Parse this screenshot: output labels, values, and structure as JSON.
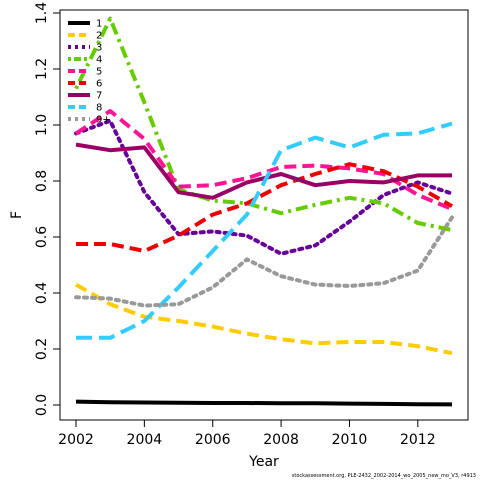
{
  "chart_data": {
    "type": "line",
    "xlabel": "Year",
    "ylabel": "F",
    "xlim": [
      2002,
      2013
    ],
    "ylim": [
      0.0,
      1.4
    ],
    "x": [
      2002,
      2003,
      2004,
      2005,
      2006,
      2007,
      2008,
      2009,
      2010,
      2011,
      2012,
      2013
    ],
    "xticks": [
      2002,
      2004,
      2006,
      2008,
      2010,
      2012
    ],
    "yticks": [
      0.0,
      0.2,
      0.4,
      0.6,
      0.8,
      1.0,
      1.2,
      1.4
    ],
    "ytick_labels": [
      "0.0",
      "0.2",
      "0.4",
      "0.6",
      "0.8",
      "1.0",
      "1.2",
      "1.4"
    ],
    "grid": false,
    "legend_position": "top-left",
    "series": [
      {
        "name": "1",
        "color": "#000000",
        "dash": "solid",
        "values": [
          0.012,
          0.01,
          0.009,
          0.008,
          0.007,
          0.007,
          0.006,
          0.006,
          0.005,
          0.004,
          0.003,
          0.002
        ]
      },
      {
        "name": "2",
        "color": "#FFCC00",
        "dash": "dashed",
        "values": [
          0.43,
          0.36,
          0.315,
          0.3,
          0.28,
          0.255,
          0.235,
          0.22,
          0.225,
          0.225,
          0.21,
          0.185
        ]
      },
      {
        "name": "3",
        "color": "#660099",
        "dash": "dotted",
        "values": [
          0.97,
          1.015,
          0.76,
          0.61,
          0.62,
          0.605,
          0.54,
          0.57,
          0.655,
          0.75,
          0.795,
          0.755
        ]
      },
      {
        "name": "4",
        "color": "#66CC00",
        "dash": "dotdash",
        "values": [
          1.13,
          1.38,
          1.08,
          0.77,
          0.73,
          0.72,
          0.685,
          0.715,
          0.74,
          0.72,
          0.65,
          0.625
        ]
      },
      {
        "name": "5",
        "color": "#FF1493",
        "dash": "dashed",
        "values": [
          0.97,
          1.05,
          0.95,
          0.78,
          0.785,
          0.81,
          0.85,
          0.855,
          0.845,
          0.825,
          0.75,
          0.7
        ]
      },
      {
        "name": "6",
        "color": "#EE0000",
        "dash": "dashed",
        "values": [
          0.575,
          0.575,
          0.55,
          0.605,
          0.68,
          0.72,
          0.785,
          0.825,
          0.86,
          0.835,
          0.78,
          0.71
        ]
      },
      {
        "name": "7",
        "color": "#990066",
        "dash": "solid",
        "values": [
          0.93,
          0.91,
          0.92,
          0.76,
          0.74,
          0.795,
          0.825,
          0.785,
          0.8,
          0.795,
          0.82,
          0.82
        ]
      },
      {
        "name": "8",
        "color": "#33CCFF",
        "dash": "longdash",
        "values": [
          0.24,
          0.24,
          0.3,
          0.42,
          0.55,
          0.68,
          0.91,
          0.955,
          0.92,
          0.965,
          0.97,
          1.005
        ]
      },
      {
        "name": "9+",
        "color": "#999999",
        "dash": "dotted",
        "values": [
          0.385,
          0.38,
          0.355,
          0.36,
          0.42,
          0.52,
          0.46,
          0.43,
          0.425,
          0.435,
          0.48,
          0.67
        ]
      }
    ]
  },
  "footer": {
    "caption": "stockassessment.org, PLE-2432_2002-2014_wo_2005_new_mo_V3, r4913"
  }
}
